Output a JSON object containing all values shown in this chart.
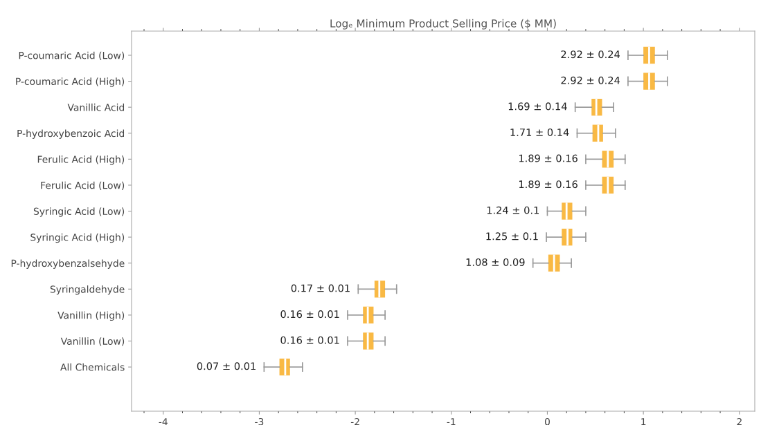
{
  "chart_data": {
    "type": "box",
    "orientation": "horizontal",
    "title": "Logₑ Minimum Product Selling Price ($ MM)",
    "categories": [
      "P-coumaric Acid (Low)",
      "P-coumaric Acid (High)",
      "Vanillic Acid",
      "P-hydroxybenzoic Acid",
      "Ferulic Acid (High)",
      "Ferulic Acid (Low)",
      "Syringic Acid (Low)",
      "Syringic Acid (High)",
      "P-hydroxybenzalsehyde",
      "Syringaldehyde",
      "Vanillin (High)",
      "Vanillin (Low)",
      "All Chemicals"
    ],
    "color": "#f9b944",
    "boxes": [
      {
        "low": 0.84,
        "q1": 1.0,
        "median": 1.06,
        "q3": 1.12,
        "high": 1.25
      },
      {
        "low": 0.84,
        "q1": 1.0,
        "median": 1.06,
        "q3": 1.12,
        "high": 1.25
      },
      {
        "low": 0.29,
        "q1": 0.46,
        "median": 0.51,
        "q3": 0.57,
        "high": 0.69
      },
      {
        "low": 0.31,
        "q1": 0.47,
        "median": 0.53,
        "q3": 0.58,
        "high": 0.71
      },
      {
        "low": 0.4,
        "q1": 0.57,
        "median": 0.63,
        "q3": 0.69,
        "high": 0.81
      },
      {
        "low": 0.4,
        "q1": 0.57,
        "median": 0.63,
        "q3": 0.69,
        "high": 0.81
      },
      {
        "low": 0.0,
        "q1": 0.15,
        "median": 0.2,
        "q3": 0.26,
        "high": 0.4
      },
      {
        "low": -0.01,
        "q1": 0.15,
        "median": 0.21,
        "q3": 0.26,
        "high": 0.4
      },
      {
        "low": -0.15,
        "q1": 0.01,
        "median": 0.07,
        "q3": 0.13,
        "high": 0.25
      },
      {
        "low": -1.97,
        "q1": -1.8,
        "median": -1.75,
        "q3": -1.69,
        "high": -1.57
      },
      {
        "low": -2.08,
        "q1": -1.92,
        "median": -1.87,
        "q3": -1.81,
        "high": -1.69
      },
      {
        "low": -2.08,
        "q1": -1.92,
        "median": -1.87,
        "q3": -1.81,
        "high": -1.69
      },
      {
        "low": -2.95,
        "q1": -2.79,
        "median": -2.73,
        "q3": -2.68,
        "high": -2.55
      }
    ],
    "value_labels": [
      "2.92 ± 0.24",
      "2.92 ± 0.24",
      "1.69 ± 0.14",
      "1.71 ± 0.14",
      "1.89 ± 0.16",
      "1.89 ± 0.16",
      "1.24 ± 0.1",
      "1.25 ± 0.1",
      "1.08 ± 0.09",
      "0.17 ± 0.01",
      "0.16 ± 0.01",
      "0.16 ± 0.01",
      "0.07 ± 0.01"
    ],
    "xlim": [
      -4.33,
      2.16
    ],
    "xticks": [
      -4,
      -3,
      -2,
      -1,
      0,
      1,
      2
    ],
    "grid": false
  }
}
